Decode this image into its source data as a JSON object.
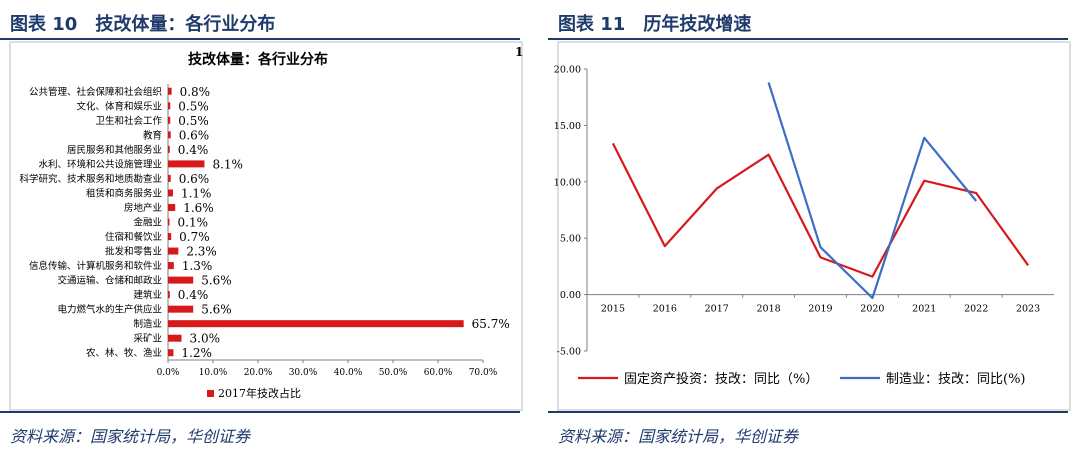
{
  "left": {
    "figure_title": "图表 10　技改体量：各行业分布",
    "source": "资料来源：国家统计局，华创证券",
    "chart_data": {
      "type": "bar",
      "orientation": "horizontal",
      "title": "技改体量：各行业分布",
      "categories": [
        "公共管理、社会保障和社会组织",
        "文化、体育和娱乐业",
        "卫生和社会工作",
        "教育",
        "居民服务和其他服务业",
        "水利、环境和公共设施管理业",
        "科学研究、技术服务和地质勘查业",
        "租赁和商务服务业",
        "房地产业",
        "金融业",
        "住宿和餐饮业",
        "批发和零售业",
        "信息传输、计算机服务和软件业",
        "交通运输、仓储和邮政业",
        "建筑业",
        "电力燃气水的生产供应业",
        "制造业",
        "采矿业",
        "农、林、牧、渔业"
      ],
      "values": [
        0.8,
        0.5,
        0.5,
        0.6,
        0.4,
        8.1,
        0.6,
        1.1,
        1.6,
        0.1,
        0.7,
        2.3,
        1.3,
        5.6,
        0.4,
        5.6,
        65.7,
        3.0,
        1.2
      ],
      "value_labels": [
        "0.8%",
        "0.5%",
        "0.5%",
        "0.6%",
        "0.4%",
        "8.1%",
        "0.6%",
        "1.1%",
        "1.6%",
        "0.1%",
        "0.7%",
        "2.3%",
        "1.3%",
        "5.6%",
        "0.4%",
        "5.6%",
        "65.7%",
        "3.0%",
        "1.2%"
      ],
      "xlim": [
        0,
        70
      ],
      "ticks": [
        "0.0%",
        "10.0%",
        "20.0%",
        "30.0%",
        "40.0%",
        "50.0%",
        "60.0%",
        "70.0%"
      ],
      "legend": "2017年技改占比",
      "legend_position": "bottom",
      "corner_mark": "1",
      "bar_color": "#d7191c",
      "grid": false
    }
  },
  "right": {
    "figure_title": "图表 11　历年技改增速",
    "source": "资料来源：国家统计局，华创证券",
    "chart_data": {
      "type": "line",
      "x": [
        "2015",
        "2016",
        "2017",
        "2018",
        "2019",
        "2020",
        "2021",
        "2022",
        "2023"
      ],
      "ylim": [
        -5,
        20
      ],
      "yticks": [
        "20.00",
        "15.00",
        "10.00",
        "5.00",
        "0.00",
        "-5.00"
      ],
      "series": [
        {
          "name": "固定资产投资：技改：同比（%）",
          "color": "#d7191c",
          "values": [
            13.4,
            4.3,
            9.4,
            12.4,
            3.3,
            1.6,
            10.1,
            9.0,
            2.6
          ]
        },
        {
          "name": "制造业：技改：同比(%)",
          "color": "#3a6fc4",
          "values": [
            null,
            null,
            null,
            18.8,
            4.2,
            -0.3,
            13.9,
            8.3,
            null
          ]
        }
      ],
      "legend_position": "bottom",
      "grid": false
    }
  }
}
